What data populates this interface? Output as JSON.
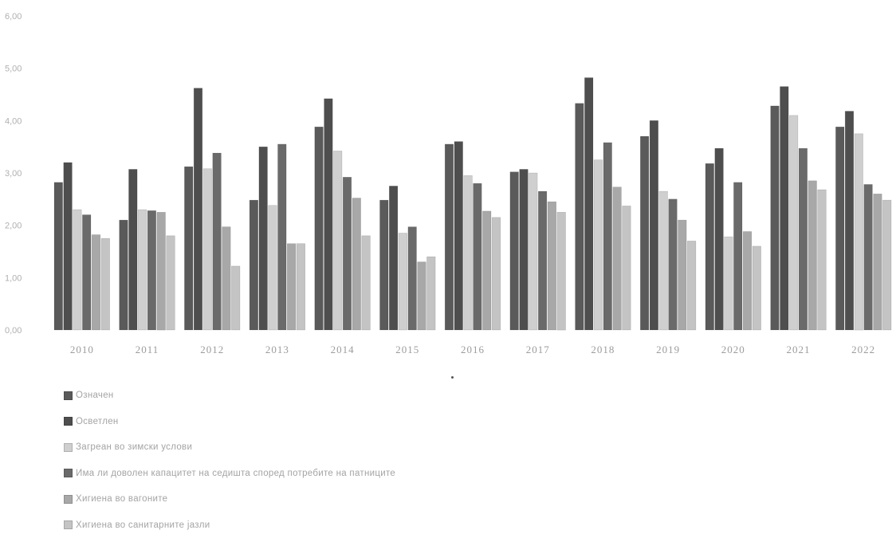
{
  "chart_data": {
    "type": "bar",
    "title": "",
    "xlabel": "",
    "ylabel": "",
    "ylim": [
      0,
      6
    ],
    "yticks": [
      "0,00",
      "1,00",
      "2,00",
      "3,00",
      "4,00",
      "5,00",
      "6,00"
    ],
    "grid": false,
    "legend_position": "bottom",
    "categories": [
      "2010",
      "2011",
      "2012",
      "2013",
      "2014",
      "2015",
      "2016",
      "2017",
      "2018",
      "2019",
      "2020",
      "2021",
      "2022"
    ],
    "series": [
      {
        "name": "Означен",
        "color": "#5a5a5a",
        "values": [
          2.82,
          2.1,
          3.12,
          2.48,
          3.88,
          2.48,
          3.55,
          3.02,
          4.33,
          3.7,
          3.18,
          4.28,
          3.88
        ]
      },
      {
        "name": "Осветлен",
        "color": "#4e4e4e",
        "values": [
          3.2,
          3.07,
          4.62,
          3.5,
          4.42,
          2.75,
          3.6,
          3.07,
          4.82,
          4.0,
          3.47,
          4.65,
          4.18
        ]
      },
      {
        "name": "Загреан во зимски услови",
        "color": "#cfcfcf",
        "values": [
          2.3,
          2.3,
          3.08,
          2.38,
          3.42,
          1.85,
          2.95,
          3.0,
          3.25,
          2.65,
          1.78,
          4.1,
          3.75
        ]
      },
      {
        "name": "Има ли доволен капацитет на седишта според потребите на патниците",
        "color": "#6a6a6a",
        "values": [
          2.2,
          2.28,
          3.38,
          3.55,
          2.92,
          1.97,
          2.8,
          2.65,
          3.58,
          2.5,
          2.82,
          3.47,
          2.78
        ]
      },
      {
        "name": "Хигиена во вагоните",
        "color": "#a8a8a8",
        "values": [
          1.82,
          2.25,
          1.97,
          1.65,
          2.52,
          1.3,
          2.27,
          2.45,
          2.73,
          2.1,
          1.88,
          2.85,
          2.6
        ]
      },
      {
        "name": "Хигиена во санитарните јазли",
        "color": "#c4c4c4",
        "values": [
          1.75,
          1.8,
          1.22,
          1.65,
          1.8,
          1.4,
          2.15,
          2.25,
          2.37,
          1.7,
          1.6,
          2.68,
          2.48
        ]
      }
    ]
  }
}
